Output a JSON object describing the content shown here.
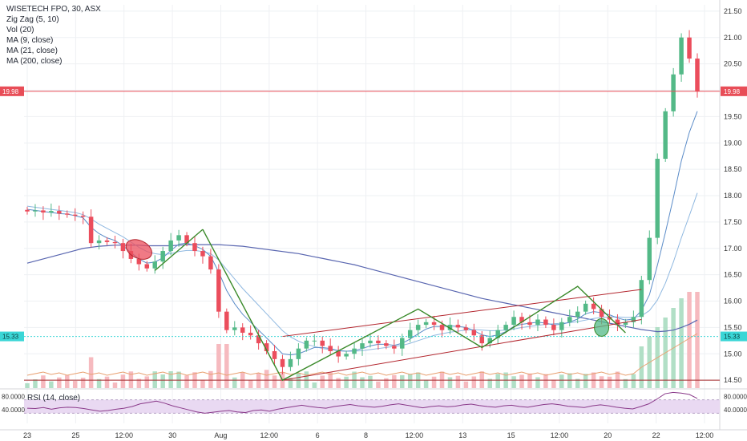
{
  "chart_data": {
    "type": "line",
    "symbol": "WISETECH FPO, 30, ASX",
    "indicators": [
      "Zig Zag (5, 10)",
      "Vol (20)",
      "MA (9, close)",
      "MA (21, close)",
      "MA (200, close)"
    ],
    "price_axis": {
      "ticks": [
        "21.50",
        "21.00",
        "20.50",
        "20.00",
        "19.50",
        "19.00",
        "18.50",
        "18.00",
        "17.50",
        "17.00",
        "16.50",
        "16.00",
        "15.50",
        "15.00",
        "14.50"
      ],
      "range": [
        14.35,
        21.62
      ]
    },
    "time_axis": {
      "labels": [
        "23",
        "25",
        "12:00",
        "30",
        "Aug",
        "12:00",
        "6",
        "8",
        "12:00",
        "13",
        "15",
        "12:00",
        "20",
        "22",
        "12:00"
      ]
    },
    "last_price": {
      "label": "19.98",
      "value": 19.98,
      "color": "#e84d57"
    },
    "cursor_price": {
      "label": "15.33",
      "value": 15.33,
      "color": "#3ad6d6"
    },
    "rsi": {
      "name": "RSI (14, close)",
      "ticks": [
        "80.0000",
        "40.0000"
      ],
      "upper": 70,
      "lower": 30,
      "range": [
        0,
        100
      ],
      "values": [
        45,
        44,
        47,
        42,
        46,
        48,
        47,
        44,
        40,
        36,
        38,
        42,
        45,
        50,
        58,
        62,
        66,
        60,
        52,
        46,
        40,
        34,
        30,
        33,
        36,
        38,
        34,
        32,
        38,
        40,
        36,
        42,
        46,
        50,
        54,
        50,
        47,
        45,
        50,
        53,
        56,
        52,
        50,
        48,
        51,
        55,
        58,
        54,
        50,
        46,
        50,
        52,
        49,
        51,
        55,
        57,
        53,
        50,
        48,
        52,
        54,
        50,
        48,
        52,
        56,
        58,
        55,
        51,
        49,
        47,
        52,
        55,
        52,
        48,
        45,
        43,
        50,
        58,
        72,
        88,
        92,
        90,
        86,
        74
      ]
    },
    "price_series": [
      17.7,
      17.72,
      17.68,
      17.71,
      17.66,
      17.64,
      17.62,
      17.6,
      17.1,
      17.15,
      17.12,
      17.1,
      16.95,
      16.8,
      16.7,
      16.62,
      16.75,
      16.95,
      17.15,
      17.25,
      17.1,
      16.95,
      16.85,
      16.6,
      15.8,
      15.45,
      15.5,
      15.4,
      15.35,
      15.2,
      15.05,
      14.9,
      14.75,
      14.9,
      15.1,
      15.25,
      15.25,
      15.15,
      15.05,
      14.95,
      15.0,
      15.1,
      15.2,
      15.25,
      15.2,
      15.15,
      15.1,
      15.3,
      15.45,
      15.55,
      15.6,
      15.55,
      15.45,
      15.55,
      15.5,
      15.45,
      15.35,
      15.2,
      15.3,
      15.45,
      15.55,
      15.7,
      15.6,
      15.55,
      15.65,
      15.55,
      15.45,
      15.6,
      15.7,
      15.8,
      15.95,
      15.85,
      15.7,
      15.65,
      15.55,
      15.6,
      15.7,
      16.4,
      17.2,
      18.7,
      19.6,
      20.3,
      21.0,
      20.6,
      19.98
    ],
    "ma9_series": [
      17.74,
      17.72,
      17.7,
      17.68,
      17.66,
      17.65,
      17.62,
      17.58,
      17.4,
      17.28,
      17.2,
      17.15,
      17.05,
      16.92,
      16.8,
      16.72,
      16.74,
      16.82,
      16.96,
      17.08,
      17.1,
      17.05,
      16.98,
      16.85,
      16.55,
      16.2,
      15.95,
      15.75,
      15.6,
      15.45,
      15.3,
      15.15,
      15.0,
      14.98,
      15.0,
      15.06,
      15.12,
      15.12,
      15.1,
      15.06,
      15.05,
      15.06,
      15.1,
      15.15,
      15.18,
      15.18,
      15.16,
      15.2,
      15.28,
      15.38,
      15.47,
      15.52,
      15.52,
      15.53,
      15.52,
      15.5,
      15.44,
      15.36,
      15.33,
      15.36,
      15.42,
      15.52,
      15.56,
      15.58,
      15.6,
      15.58,
      15.55,
      15.56,
      15.6,
      15.66,
      15.76,
      15.8,
      15.78,
      15.74,
      15.68,
      15.64,
      15.66,
      15.82,
      16.12,
      16.68,
      17.3,
      17.96,
      18.66,
      19.2,
      19.6
    ],
    "ma21_series": [
      17.8,
      17.78,
      17.76,
      17.74,
      17.72,
      17.7,
      17.68,
      17.64,
      17.56,
      17.46,
      17.38,
      17.3,
      17.22,
      17.12,
      17.02,
      16.94,
      16.9,
      16.88,
      16.9,
      16.94,
      16.96,
      16.96,
      16.94,
      16.9,
      16.78,
      16.6,
      16.42,
      16.24,
      16.08,
      15.92,
      15.76,
      15.6,
      15.44,
      15.32,
      15.24,
      15.18,
      15.14,
      15.1,
      15.08,
      15.06,
      15.05,
      15.05,
      15.06,
      15.08,
      15.1,
      15.12,
      15.14,
      15.16,
      15.2,
      15.25,
      15.3,
      15.35,
      15.38,
      15.41,
      15.43,
      15.45,
      15.46,
      15.45,
      15.44,
      15.44,
      15.45,
      15.47,
      15.5,
      15.52,
      15.54,
      15.56,
      15.57,
      15.58,
      15.59,
      15.61,
      15.64,
      15.67,
      15.69,
      15.7,
      15.7,
      15.69,
      15.69,
      15.72,
      15.82,
      16.02,
      16.34,
      16.74,
      17.2,
      17.62,
      18.05
    ],
    "ma200_series": [
      16.72,
      16.76,
      16.8,
      16.84,
      16.88,
      16.92,
      16.96,
      17.0,
      17.02,
      17.04,
      17.05,
      17.06,
      17.06,
      17.06,
      17.06,
      17.05,
      17.05,
      17.05,
      17.05,
      17.06,
      17.07,
      17.07,
      17.07,
      17.07,
      17.07,
      17.06,
      17.05,
      17.04,
      17.02,
      17.0,
      16.98,
      16.96,
      16.94,
      16.92,
      16.9,
      16.87,
      16.84,
      16.81,
      16.78,
      16.75,
      16.72,
      16.69,
      16.65,
      16.61,
      16.57,
      16.53,
      16.49,
      16.45,
      16.41,
      16.37,
      16.33,
      16.29,
      16.25,
      16.21,
      16.17,
      16.13,
      16.09,
      16.05,
      16.02,
      15.99,
      15.96,
      15.93,
      15.9,
      15.87,
      15.84,
      15.81,
      15.78,
      15.75,
      15.72,
      15.7,
      15.67,
      15.64,
      15.61,
      15.58,
      15.55,
      15.52,
      15.49,
      15.46,
      15.44,
      15.42,
      15.43,
      15.45,
      15.5,
      15.56,
      15.64
    ],
    "zigzag_series": [
      {
        "i": 22,
        "v": 17.36
      },
      {
        "i": 32,
        "v": 14.5
      },
      {
        "i": 49,
        "v": 15.85
      },
      {
        "i": 57,
        "v": 15.12
      },
      {
        "i": 69,
        "v": 16.28
      },
      {
        "i": 75,
        "v": 15.4
      }
    ],
    "channel": {
      "upper": [
        {
          "i": 32,
          "v": 15.33
        },
        {
          "i": 77,
          "v": 16.22
        }
      ],
      "lower": [
        {
          "i": 32,
          "v": 14.5
        },
        {
          "i": 77,
          "v": 15.65
        }
      ]
    },
    "support_line": 14.5,
    "colors": {
      "up": "#53b987",
      "down": "#eb4d5c",
      "ma9": "#5b8cc8",
      "ma21": "#8fb8e0",
      "ma200": "#5966b0",
      "zigzag": "#3a8a2a",
      "channel": "#b3262e",
      "rsi": "#8a3a8a",
      "rsi_fill": "#e9d9f2",
      "support": "#a4282a",
      "last_price_line": "#e84d57",
      "cursor_line": "#3ad6d6"
    }
  }
}
